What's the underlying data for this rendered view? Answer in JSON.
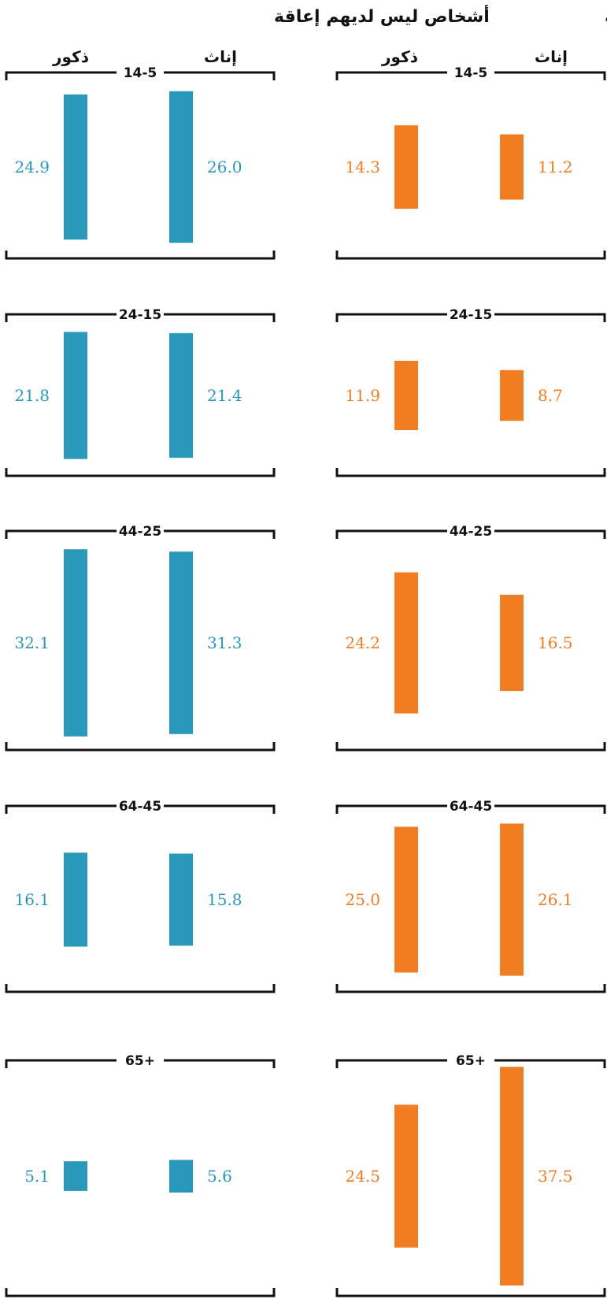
{
  "chart_data": {
    "type": "bar",
    "colors": {
      "with_disability": "#f07d22",
      "without_disability": "#2a98b8"
    },
    "panels": [
      {
        "key": "with_disability",
        "title": "الأشخاص ذوو الإعاقة",
        "male_label": "ذكور",
        "female_label": "إناث",
        "groups": [
          {
            "age": "14-5",
            "male": 14.3,
            "female": 11.2,
            "male_label": "14.3",
            "female_label": "11.2"
          },
          {
            "age": "24-15",
            "male": 11.9,
            "female": 8.7,
            "male_label": "11.9",
            "female_label": "8.7"
          },
          {
            "age": "44-25",
            "male": 24.2,
            "female": 16.5,
            "male_label": "24.2",
            "female_label": "16.5"
          },
          {
            "age": "64-45",
            "male": 25.0,
            "female": 26.1,
            "male_label": "25.0",
            "female_label": "26.1"
          },
          {
            "age": "65+",
            "male": 24.5,
            "female": 37.5,
            "male_label": "24.5",
            "female_label": "37.5"
          }
        ]
      },
      {
        "key": "without_disability",
        "title": "أشخاص ليس لديهم إعاقة",
        "male_label": "ذكور",
        "female_label": "إناث",
        "groups": [
          {
            "age": "14-5",
            "male": 24.9,
            "female": 26.0,
            "male_label": "24.9",
            "female_label": "26.0"
          },
          {
            "age": "24-15",
            "male": 21.8,
            "female": 21.4,
            "male_label": "21.8",
            "female_label": "21.4"
          },
          {
            "age": "44-25",
            "male": 32.1,
            "female": 31.3,
            "male_label": "32.1",
            "female_label": "31.3"
          },
          {
            "age": "64-45",
            "male": 16.1,
            "female": 15.8,
            "male_label": "16.1",
            "female_label": "15.8"
          },
          {
            "age": "65+",
            "male": 5.1,
            "female": 5.6,
            "male_label": "5.1",
            "female_label": "5.6"
          }
        ]
      }
    ]
  }
}
